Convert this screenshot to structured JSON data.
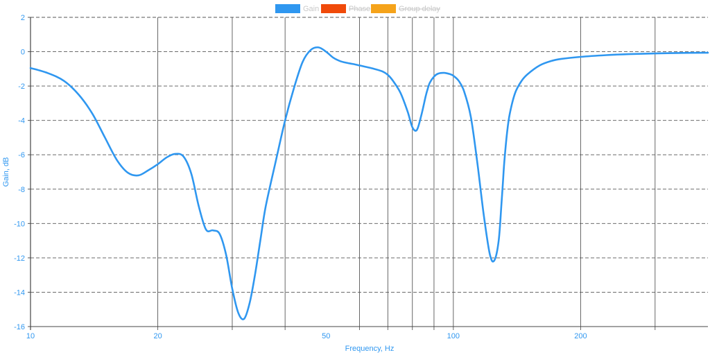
{
  "chart_data": {
    "type": "line",
    "title": "",
    "xlabel": "Frequency, Hz",
    "ylabel": "Gain, dB",
    "x_scale": "log",
    "xlim": [
      10,
      400
    ],
    "ylim": [
      -16,
      2
    ],
    "x_ticks": [
      10,
      20,
      50,
      100,
      200
    ],
    "y_ticks": [
      2,
      0,
      -2,
      -4,
      -6,
      -8,
      -10,
      -12,
      -14,
      -16
    ],
    "x_gridlines": [
      20,
      30,
      40,
      60,
      70,
      80,
      90,
      100,
      200,
      300
    ],
    "grid": true,
    "legend": {
      "placement": "top",
      "items": [
        {
          "name": "Gain",
          "color": "#2f97f0",
          "hidden": false
        },
        {
          "name": "Phase",
          "color": "#f04a0a",
          "hidden": true
        },
        {
          "name": "Group delay",
          "color": "#f5a31a",
          "hidden": true
        }
      ]
    },
    "series": [
      {
        "name": "Gain",
        "color": "#2f97f0",
        "x": [
          10,
          11,
          12,
          13,
          14,
          15,
          16,
          17,
          18,
          19,
          20,
          21,
          22,
          23,
          24,
          25,
          26,
          27,
          28,
          29,
          30,
          31,
          32,
          33,
          34,
          35,
          36,
          38,
          40,
          42,
          44,
          46,
          48,
          50,
          52,
          54,
          56,
          58,
          60,
          62,
          65,
          68,
          70,
          72,
          75,
          78,
          80,
          82,
          84,
          86,
          87,
          88,
          90,
          92,
          95,
          98,
          100,
          103,
          106,
          110,
          114,
          118,
          122,
          125,
          128,
          130,
          131,
          132,
          134,
          136,
          140,
          145,
          150,
          160,
          170,
          180,
          200,
          230,
          260,
          300,
          350,
          400
        ],
        "y": [
          -0.95,
          -1.25,
          -1.7,
          -2.5,
          -3.6,
          -5.0,
          -6.3,
          -7.05,
          -7.2,
          -6.9,
          -6.55,
          -6.15,
          -5.95,
          -6.1,
          -7.1,
          -9.0,
          -10.35,
          -10.4,
          -10.6,
          -11.8,
          -13.8,
          -15.2,
          -15.55,
          -14.6,
          -12.9,
          -10.9,
          -9.0,
          -6.4,
          -4.0,
          -2.1,
          -0.6,
          0.1,
          0.25,
          0.0,
          -0.35,
          -0.55,
          -0.65,
          -0.72,
          -0.8,
          -0.88,
          -1.0,
          -1.15,
          -1.35,
          -1.7,
          -2.4,
          -3.5,
          -4.4,
          -4.55,
          -3.7,
          -2.6,
          -2.15,
          -1.8,
          -1.45,
          -1.28,
          -1.23,
          -1.3,
          -1.4,
          -1.7,
          -2.3,
          -3.8,
          -6.5,
          -9.5,
          -11.8,
          -12.15,
          -11.0,
          -8.8,
          -7.6,
          -6.4,
          -4.7,
          -3.6,
          -2.4,
          -1.7,
          -1.3,
          -0.8,
          -0.55,
          -0.42,
          -0.3,
          -0.2,
          -0.14,
          -0.1,
          -0.07,
          -0.06
        ]
      }
    ]
  }
}
